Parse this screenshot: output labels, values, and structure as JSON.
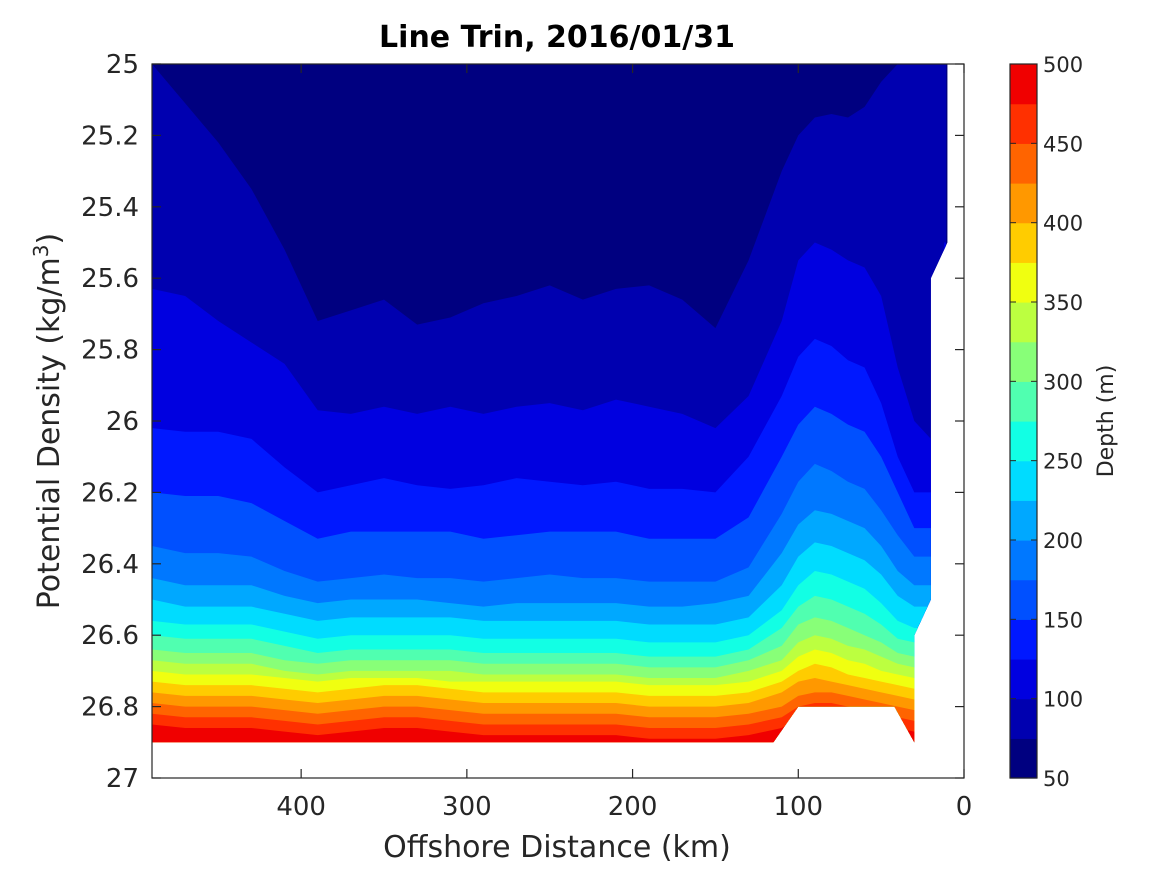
{
  "chart_data": {
    "type": "heatmap",
    "title": "Line Trin, 2016/01/31",
    "xlabel": "Offshore Distance (km)",
    "ylabel": "Potential Density (kg/m",
    "ylabel_sup": "3",
    "ylabel_end": ")",
    "colorbar_label": "Depth (m)",
    "x_reversed": true,
    "xlim": [
      0,
      490
    ],
    "xticks": [
      400,
      300,
      200,
      100,
      0
    ],
    "y_reversed": true,
    "ylim": [
      25,
      27
    ],
    "yticks": [
      25,
      25.2,
      25.4,
      25.6,
      25.8,
      26,
      26.2,
      26.4,
      26.6,
      26.8,
      27
    ],
    "ytick_labels": [
      "25",
      "25.2",
      "25.4",
      "25.6",
      "25.8",
      "26",
      "26.2",
      "26.4",
      "26.6",
      "26.8",
      "27"
    ],
    "colorbar_ticks": [
      50,
      100,
      150,
      200,
      250,
      300,
      350,
      400,
      450,
      500
    ],
    "colorbar_range": [
      50,
      500
    ],
    "contour_levels": [
      50,
      75,
      100,
      125,
      150,
      175,
      200,
      225,
      250,
      275,
      300,
      325,
      350,
      375,
      400,
      425,
      450,
      475,
      500
    ],
    "colors": [
      "#000080",
      "#0000b0",
      "#0000e0",
      "#0018ff",
      "#0050ff",
      "#0078ff",
      "#00a8ff",
      "#00dcff",
      "#12ffe4",
      "#50ffb0",
      "#88ff78",
      "#bcff40",
      "#f0ff10",
      "#ffcc00",
      "#ff9800",
      "#ff6400",
      "#ff3000",
      "#f00000",
      "#b00000"
    ],
    "distance_km": [
      490,
      470,
      450,
      430,
      410,
      390,
      370,
      350,
      330,
      310,
      290,
      270,
      250,
      230,
      210,
      190,
      170,
      150,
      130,
      110,
      100,
      90,
      80,
      70,
      60,
      50,
      40,
      30,
      20,
      12
    ],
    "depth_contours": [
      {
        "depth": 75,
        "density": [
          25.0,
          25.11,
          25.22,
          25.35,
          25.52,
          25.72,
          25.69,
          25.66,
          25.73,
          25.71,
          25.67,
          25.65,
          25.62,
          25.66,
          25.63,
          25.62,
          25.66,
          25.74,
          25.55,
          25.3,
          25.2,
          25.15,
          25.14,
          25.15,
          25.12,
          25.05,
          25.0,
          25.0,
          25.0,
          25.0
        ]
      },
      {
        "depth": 100,
        "density": [
          25.63,
          25.65,
          25.72,
          25.78,
          25.84,
          25.97,
          25.98,
          25.96,
          25.98,
          25.96,
          25.98,
          25.96,
          25.95,
          25.97,
          25.94,
          25.96,
          25.98,
          26.02,
          25.93,
          25.72,
          25.55,
          25.5,
          25.52,
          25.55,
          25.57,
          25.65,
          25.85,
          26.0,
          26.05,
          25.5
        ]
      },
      {
        "depth": 125,
        "density": [
          26.02,
          26.03,
          26.03,
          26.05,
          26.13,
          26.2,
          26.18,
          26.16,
          26.18,
          26.19,
          26.18,
          26.16,
          26.17,
          26.18,
          26.17,
          26.19,
          26.19,
          26.2,
          26.1,
          25.93,
          25.82,
          25.77,
          25.79,
          25.83,
          25.85,
          25.95,
          26.1,
          26.2,
          26.2,
          26.0
        ]
      },
      {
        "depth": 150,
        "density": [
          26.2,
          26.21,
          26.21,
          26.23,
          26.28,
          26.33,
          26.31,
          26.31,
          26.31,
          26.31,
          26.33,
          26.32,
          26.31,
          26.31,
          26.31,
          26.33,
          26.33,
          26.33,
          26.27,
          26.1,
          26.01,
          25.96,
          25.98,
          26.01,
          26.03,
          26.1,
          26.2,
          26.3,
          26.3,
          26.15
        ]
      },
      {
        "depth": 175,
        "density": [
          26.35,
          26.37,
          26.37,
          26.38,
          26.42,
          26.45,
          26.44,
          26.43,
          26.44,
          26.44,
          26.45,
          26.44,
          26.43,
          26.44,
          26.44,
          26.45,
          26.45,
          26.45,
          26.41,
          26.26,
          26.17,
          26.12,
          26.14,
          26.17,
          26.19,
          26.25,
          26.32,
          26.38,
          26.38,
          26.3
        ]
      },
      {
        "depth": 200,
        "density": [
          26.44,
          26.46,
          26.46,
          26.46,
          26.49,
          26.51,
          26.5,
          26.5,
          26.5,
          26.51,
          26.52,
          26.51,
          26.51,
          26.51,
          26.51,
          26.52,
          26.52,
          26.51,
          26.49,
          26.37,
          26.29,
          26.25,
          26.26,
          26.28,
          26.3,
          26.35,
          26.42,
          26.46,
          26.46,
          26.4
        ]
      },
      {
        "depth": 225,
        "density": [
          26.5,
          26.52,
          26.52,
          26.52,
          26.54,
          26.56,
          26.55,
          26.55,
          26.55,
          26.55,
          26.56,
          26.56,
          26.56,
          26.56,
          26.56,
          26.57,
          26.57,
          26.57,
          26.55,
          26.46,
          26.38,
          26.34,
          26.35,
          26.37,
          26.39,
          26.43,
          26.49,
          26.52,
          26.52,
          26.46
        ]
      },
      {
        "depth": 250,
        "density": [
          26.56,
          26.57,
          26.57,
          26.57,
          26.59,
          26.61,
          26.6,
          26.6,
          26.6,
          26.6,
          26.61,
          26.61,
          26.61,
          26.61,
          26.61,
          26.62,
          26.62,
          26.62,
          26.6,
          26.53,
          26.46,
          26.42,
          26.43,
          26.45,
          26.47,
          26.51,
          26.56,
          26.58,
          26.58,
          26.52
        ]
      },
      {
        "depth": 275,
        "density": [
          26.6,
          26.61,
          26.61,
          26.61,
          26.63,
          26.65,
          26.64,
          26.64,
          26.64,
          26.64,
          26.65,
          26.65,
          26.65,
          26.65,
          26.65,
          26.66,
          26.66,
          26.66,
          26.64,
          26.58,
          26.52,
          26.49,
          26.5,
          26.52,
          26.54,
          26.57,
          26.61,
          26.62,
          26.62,
          26.58
        ]
      },
      {
        "depth": 300,
        "density": [
          26.64,
          26.65,
          26.65,
          26.65,
          26.67,
          26.68,
          26.67,
          26.67,
          26.67,
          26.67,
          26.68,
          26.68,
          26.68,
          26.68,
          26.68,
          26.69,
          26.69,
          26.69,
          26.67,
          26.63,
          26.57,
          26.55,
          26.56,
          26.58,
          26.6,
          26.62,
          26.65,
          26.66,
          26.66,
          26.62
        ]
      },
      {
        "depth": 325,
        "density": [
          26.67,
          26.68,
          26.68,
          26.68,
          26.7,
          26.71,
          26.7,
          26.7,
          26.7,
          26.7,
          26.71,
          26.71,
          26.71,
          26.71,
          26.71,
          26.72,
          26.72,
          26.72,
          26.7,
          26.67,
          26.62,
          26.6,
          26.61,
          26.63,
          26.64,
          26.66,
          26.68,
          26.69,
          26.69,
          26.66
        ]
      },
      {
        "depth": 350,
        "density": [
          26.7,
          26.71,
          26.71,
          26.71,
          26.72,
          26.73,
          26.72,
          26.72,
          26.72,
          26.73,
          26.73,
          26.73,
          26.73,
          26.73,
          26.73,
          26.74,
          26.74,
          26.74,
          26.73,
          26.7,
          26.66,
          26.64,
          26.65,
          26.67,
          26.68,
          26.7,
          26.71,
          26.72,
          26.72,
          26.69
        ]
      },
      {
        "depth": 375,
        "density": [
          26.73,
          26.74,
          26.74,
          26.74,
          26.75,
          26.76,
          26.75,
          26.74,
          26.74,
          26.75,
          26.76,
          26.76,
          26.76,
          26.76,
          26.76,
          26.77,
          26.77,
          26.77,
          26.76,
          26.73,
          26.7,
          26.68,
          26.69,
          26.71,
          26.72,
          26.73,
          26.74,
          26.75,
          26.75,
          26.72
        ]
      },
      {
        "depth": 400,
        "density": [
          26.76,
          26.77,
          26.77,
          26.77,
          26.78,
          26.79,
          26.78,
          26.77,
          26.77,
          26.78,
          26.79,
          26.79,
          26.79,
          26.79,
          26.79,
          26.8,
          26.8,
          26.8,
          26.79,
          26.76,
          26.73,
          26.72,
          26.73,
          26.74,
          26.75,
          26.76,
          26.77,
          26.78,
          26.78,
          26.75
        ]
      },
      {
        "depth": 425,
        "density": [
          26.79,
          26.8,
          26.8,
          26.8,
          26.81,
          26.82,
          26.81,
          26.8,
          26.8,
          26.81,
          26.82,
          26.82,
          26.82,
          26.82,
          26.82,
          26.83,
          26.83,
          26.83,
          26.82,
          26.8,
          26.77,
          26.76,
          26.76,
          26.77,
          26.78,
          26.79,
          26.8,
          26.81,
          26.81,
          26.78
        ]
      },
      {
        "depth": 450,
        "density": [
          26.82,
          26.83,
          26.83,
          26.83,
          26.84,
          26.85,
          26.84,
          26.83,
          26.83,
          26.84,
          26.85,
          26.85,
          26.85,
          26.85,
          26.85,
          26.86,
          26.86,
          26.86,
          26.85,
          26.83,
          26.8,
          26.79,
          26.79,
          26.8,
          26.81,
          26.82,
          26.83,
          26.84,
          26.84,
          26.81
        ]
      },
      {
        "depth": 475,
        "density": [
          26.85,
          26.86,
          26.86,
          26.86,
          26.87,
          26.88,
          26.87,
          26.86,
          26.86,
          26.87,
          26.88,
          26.88,
          26.88,
          26.88,
          26.88,
          26.89,
          26.89,
          26.89,
          26.88,
          26.86,
          26.83,
          26.82,
          26.82,
          26.83,
          26.84,
          26.85,
          26.86,
          26.87,
          26.87,
          26.84
        ]
      }
    ],
    "data_bottom": [
      {
        "x": 490,
        "y": 26.9
      },
      {
        "x": 115,
        "y": 26.9
      },
      {
        "x": 100,
        "y": 26.8
      },
      {
        "x": 42,
        "y": 26.8
      },
      {
        "x": 30,
        "y": 26.9
      },
      {
        "x": 30,
        "y": 26.6
      },
      {
        "x": 20,
        "y": 26.5
      },
      {
        "x": 20,
        "y": 25.6
      },
      {
        "x": 10,
        "y": 25.5
      },
      {
        "x": 10,
        "y": 25.0
      }
    ]
  }
}
